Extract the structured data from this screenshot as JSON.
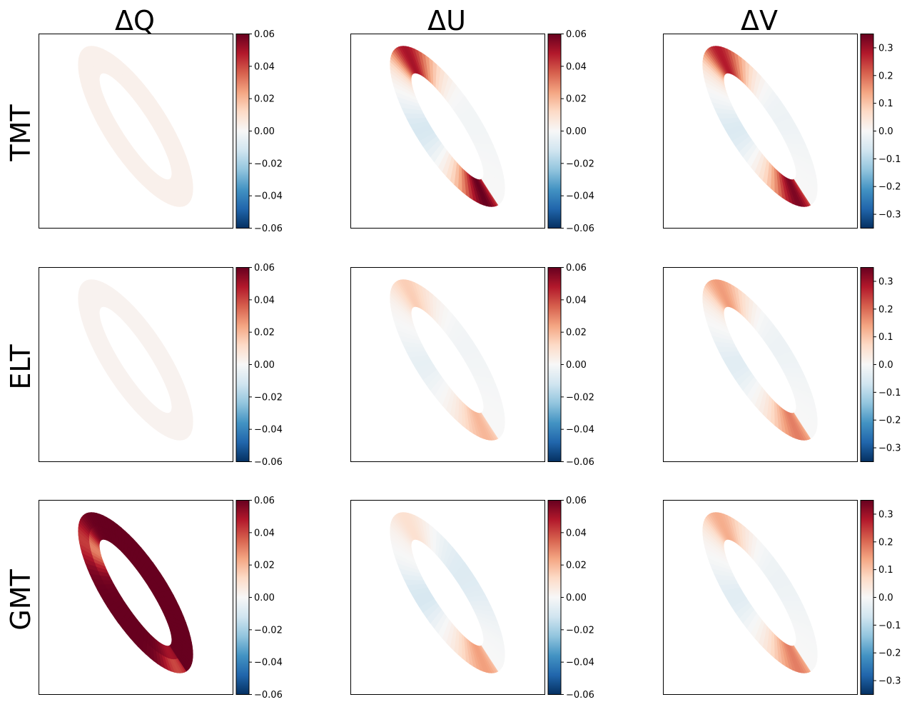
{
  "figure": {
    "col_titles": [
      "ΔQ",
      "ΔU",
      "ΔV"
    ],
    "row_labels": [
      "TMT",
      "ELT",
      "GMT"
    ]
  },
  "chart_data": {
    "type": "heatmap",
    "colormap": "RdBu_r",
    "shape": "elliptical annulus (tilted), same for all panels",
    "axes_ticks": "none",
    "rows": [
      "TMT",
      "ELT",
      "GMT"
    ],
    "columns": [
      "ΔQ",
      "ΔU",
      "ΔV"
    ],
    "colorbars": {
      "ΔQ": {
        "range": [
          -0.06,
          0.06
        ],
        "ticks": [
          -0.06,
          -0.04,
          -0.02,
          0.0,
          0.02,
          0.04,
          0.06
        ],
        "tick_labels": [
          "−0.06",
          "−0.04",
          "−0.02",
          "0.00",
          "0.02",
          "0.04",
          "0.06"
        ]
      },
      "ΔU": {
        "range": [
          -0.06,
          0.06
        ],
        "ticks": [
          -0.06,
          -0.04,
          -0.02,
          0.0,
          0.02,
          0.04,
          0.06
        ],
        "tick_labels": [
          "−0.06",
          "−0.04",
          "−0.02",
          "0.00",
          "0.02",
          "0.04",
          "0.06"
        ]
      },
      "ΔV": {
        "range": [
          -0.35,
          0.35
        ],
        "ticks": [
          -0.3,
          -0.2,
          -0.1,
          0.0,
          0.1,
          0.2,
          0.3
        ],
        "tick_labels": [
          "−0.3",
          "−0.2",
          "−0.1",
          "0.0",
          "0.1",
          "0.2",
          "0.3"
        ]
      }
    },
    "panels": [
      {
        "row": "TMT",
        "col": "ΔQ",
        "pattern": "uniform",
        "values": {
          "uniform": 0.003
        }
      },
      {
        "row": "TMT",
        "col": "ΔU",
        "pattern": "dipole",
        "values": {
          "upper_outer": 0.05,
          "lower_inner": 0.06,
          "inner_upper": -0.01,
          "outer_lower": -0.002
        }
      },
      {
        "row": "TMT",
        "col": "ΔV",
        "pattern": "dipole",
        "values": {
          "upper_outer": 0.28,
          "lower_inner": 0.33,
          "inner_upper": -0.05,
          "outer_lower": -0.02
        }
      },
      {
        "row": "ELT",
        "col": "ΔQ",
        "pattern": "uniform",
        "values": {
          "uniform": 0.002
        }
      },
      {
        "row": "ELT",
        "col": "ΔU",
        "pattern": "dipole",
        "values": {
          "upper_outer": 0.015,
          "lower_inner": 0.02,
          "inner_upper": -0.005,
          "outer_lower": -0.002
        }
      },
      {
        "row": "ELT",
        "col": "ΔV",
        "pattern": "dipole",
        "values": {
          "upper_outer": 0.15,
          "lower_inner": 0.18,
          "inner_upper": -0.04,
          "outer_lower": -0.02
        }
      },
      {
        "row": "GMT",
        "col": "ΔQ",
        "pattern": "ring",
        "values": {
          "main": 0.06,
          "upper_inner": 0.03,
          "lower_outer": 0.04
        }
      },
      {
        "row": "GMT",
        "col": "ΔU",
        "pattern": "dipole",
        "values": {
          "upper_outer": 0.01,
          "lower_inner": 0.025,
          "inner_upper": -0.01,
          "outer_lower": -0.008
        }
      },
      {
        "row": "GMT",
        "col": "ΔV",
        "pattern": "dipole",
        "values": {
          "upper_outer": 0.13,
          "lower_inner": 0.18,
          "inner_upper": -0.04,
          "outer_lower": -0.02
        }
      }
    ]
  }
}
